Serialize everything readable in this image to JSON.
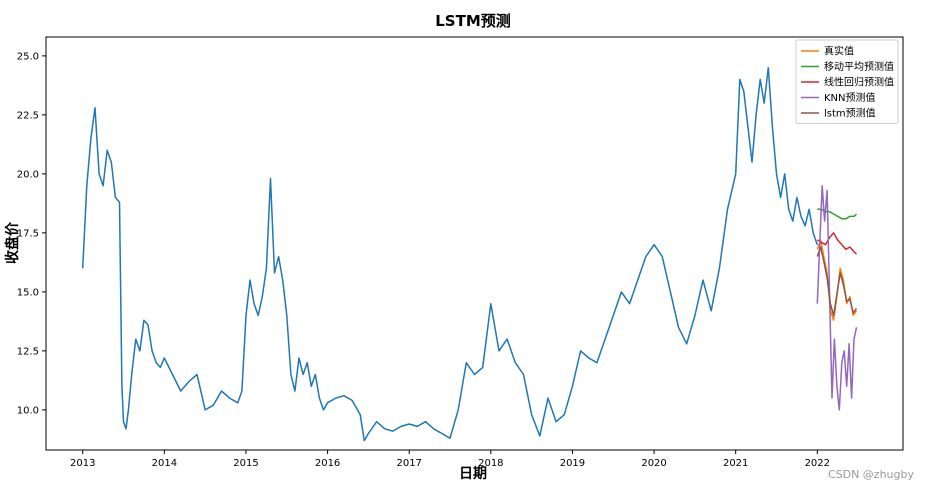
{
  "chart_data": {
    "type": "line",
    "title": "LSTM预测",
    "xlabel": "日期",
    "ylabel": "收盘价",
    "xlim": [
      2012.55,
      2023.05
    ],
    "ylim": [
      8.3,
      25.8
    ],
    "grid": false,
    "legend_placement": "top-right",
    "x_ticks": [
      2013,
      2014,
      2015,
      2016,
      2017,
      2018,
      2019,
      2020,
      2021,
      2022
    ],
    "x_tick_labels": [
      "2013",
      "2014",
      "2015",
      "2016",
      "2017",
      "2018",
      "2019",
      "2020",
      "2021",
      "2022"
    ],
    "y_ticks": [
      10.0,
      12.5,
      15.0,
      17.5,
      20.0,
      22.5,
      25.0
    ],
    "y_tick_labels": [
      "10.0",
      "12.5",
      "15.0",
      "17.5",
      "20.0",
      "22.5",
      "25.0"
    ],
    "series": [
      {
        "name": "",
        "color": "#1f77b4",
        "x": [
          2013.0,
          2013.05,
          2013.1,
          2013.15,
          2013.2,
          2013.25,
          2013.3,
          2013.35,
          2013.4,
          2013.45,
          2013.48,
          2013.5,
          2013.53,
          2013.56,
          2013.6,
          2013.65,
          2013.7,
          2013.75,
          2013.8,
          2013.85,
          2013.9,
          2013.95,
          2014.0,
          2014.1,
          2014.2,
          2014.3,
          2014.4,
          2014.5,
          2014.6,
          2014.7,
          2014.8,
          2014.9,
          2014.95,
          2015.0,
          2015.05,
          2015.1,
          2015.15,
          2015.2,
          2015.25,
          2015.3,
          2015.35,
          2015.4,
          2015.45,
          2015.5,
          2015.55,
          2015.6,
          2015.65,
          2015.7,
          2015.75,
          2015.8,
          2015.85,
          2015.9,
          2015.95,
          2016.0,
          2016.1,
          2016.2,
          2016.3,
          2016.4,
          2016.45,
          2016.5,
          2016.6,
          2016.7,
          2016.8,
          2016.9,
          2017.0,
          2017.1,
          2017.2,
          2017.3,
          2017.4,
          2017.5,
          2017.6,
          2017.7,
          2017.8,
          2017.9,
          2018.0,
          2018.1,
          2018.2,
          2018.3,
          2018.4,
          2018.5,
          2018.6,
          2018.7,
          2018.8,
          2018.9,
          2019.0,
          2019.1,
          2019.2,
          2019.3,
          2019.4,
          2019.5,
          2019.6,
          2019.7,
          2019.8,
          2019.9,
          2020.0,
          2020.1,
          2020.2,
          2020.3,
          2020.4,
          2020.5,
          2020.6,
          2020.7,
          2020.8,
          2020.9,
          2021.0,
          2021.05,
          2021.1,
          2021.15,
          2021.2,
          2021.25,
          2021.3,
          2021.35,
          2021.4,
          2021.45,
          2021.5,
          2021.55,
          2021.6,
          2021.65,
          2021.7,
          2021.75,
          2021.8,
          2021.85,
          2021.9,
          2021.95,
          2022.0
        ],
        "values": [
          16.0,
          19.5,
          21.5,
          22.8,
          20.0,
          19.5,
          21.0,
          20.5,
          19.0,
          18.8,
          11.0,
          9.5,
          9.2,
          10.0,
          11.5,
          13.0,
          12.5,
          13.8,
          13.6,
          12.5,
          12.0,
          11.8,
          12.2,
          11.5,
          10.8,
          11.2,
          11.5,
          10.0,
          10.2,
          10.8,
          10.5,
          10.3,
          10.8,
          14.0,
          15.5,
          14.5,
          14.0,
          14.8,
          16.0,
          19.8,
          15.8,
          16.5,
          15.5,
          14.0,
          11.5,
          10.8,
          12.2,
          11.5,
          12.0,
          11.0,
          11.5,
          10.5,
          10.0,
          10.3,
          10.5,
          10.6,
          10.4,
          9.8,
          8.7,
          9.0,
          9.5,
          9.2,
          9.1,
          9.3,
          9.4,
          9.3,
          9.5,
          9.2,
          9.0,
          8.8,
          10.0,
          12.0,
          11.5,
          11.8,
          14.5,
          12.5,
          13.0,
          12.0,
          11.5,
          9.8,
          8.9,
          10.5,
          9.5,
          9.8,
          11.0,
          12.5,
          12.2,
          12.0,
          13.0,
          14.0,
          15.0,
          14.5,
          15.5,
          16.5,
          17.0,
          16.5,
          15.0,
          13.5,
          12.8,
          14.0,
          15.5,
          14.2,
          16.0,
          18.5,
          20.0,
          24.0,
          23.5,
          22.0,
          20.5,
          22.5,
          24.0,
          23.0,
          24.5,
          22.0,
          20.0,
          19.0,
          20.0,
          18.5,
          18.0,
          19.0,
          18.2,
          17.8,
          18.5,
          17.5,
          17.0
        ]
      },
      {
        "name": "真实值",
        "color": "#ff7f0e",
        "x": [
          2022.0,
          2022.04,
          2022.08,
          2022.12,
          2022.16,
          2022.2,
          2022.24,
          2022.28,
          2022.32,
          2022.36,
          2022.4,
          2022.44,
          2022.48
        ],
        "values": [
          16.8,
          17.2,
          16.5,
          15.8,
          14.2,
          13.8,
          14.8,
          16.0,
          15.5,
          14.5,
          14.8,
          14.0,
          14.2
        ]
      },
      {
        "name": "移动平均预测值",
        "color": "#2ca02c",
        "x": [
          2022.0,
          2022.05,
          2022.1,
          2022.15,
          2022.2,
          2022.25,
          2022.3,
          2022.35,
          2022.4,
          2022.45,
          2022.48
        ],
        "values": [
          18.5,
          18.5,
          18.4,
          18.4,
          18.3,
          18.2,
          18.1,
          18.1,
          18.2,
          18.2,
          18.3
        ]
      },
      {
        "name": "线性回归预测值",
        "color": "#d62728",
        "x": [
          2022.0,
          2022.05,
          2022.1,
          2022.15,
          2022.2,
          2022.25,
          2022.3,
          2022.35,
          2022.4,
          2022.45,
          2022.48
        ],
        "values": [
          17.2,
          17.1,
          17.0,
          17.3,
          17.5,
          17.2,
          17.0,
          16.8,
          16.9,
          16.7,
          16.6
        ]
      },
      {
        "name": "KNN预测值",
        "color": "#9467bd",
        "x": [
          2022.0,
          2022.03,
          2022.06,
          2022.09,
          2022.12,
          2022.15,
          2022.18,
          2022.21,
          2022.24,
          2022.27,
          2022.3,
          2022.33,
          2022.36,
          2022.39,
          2022.42,
          2022.45,
          2022.48
        ],
        "values": [
          14.5,
          17.0,
          19.5,
          18.0,
          19.3,
          15.0,
          10.5,
          13.0,
          11.0,
          10.0,
          12.0,
          12.5,
          11.0,
          12.8,
          10.5,
          13.0,
          13.5
        ]
      },
      {
        "name": "lstm预测值",
        "color": "#8c564b",
        "x": [
          2022.0,
          2022.04,
          2022.08,
          2022.12,
          2022.16,
          2022.2,
          2022.24,
          2022.28,
          2022.32,
          2022.36,
          2022.4,
          2022.44,
          2022.48
        ],
        "values": [
          16.5,
          16.9,
          16.3,
          15.6,
          14.5,
          14.0,
          14.9,
          15.8,
          15.3,
          14.6,
          14.7,
          14.1,
          14.3
        ]
      }
    ],
    "legend": [
      "真实值",
      "移动平均预测值",
      "线性回归预测值",
      "KNN预测值",
      "lstm预测值"
    ]
  },
  "watermark": "CSDN @zhugby"
}
